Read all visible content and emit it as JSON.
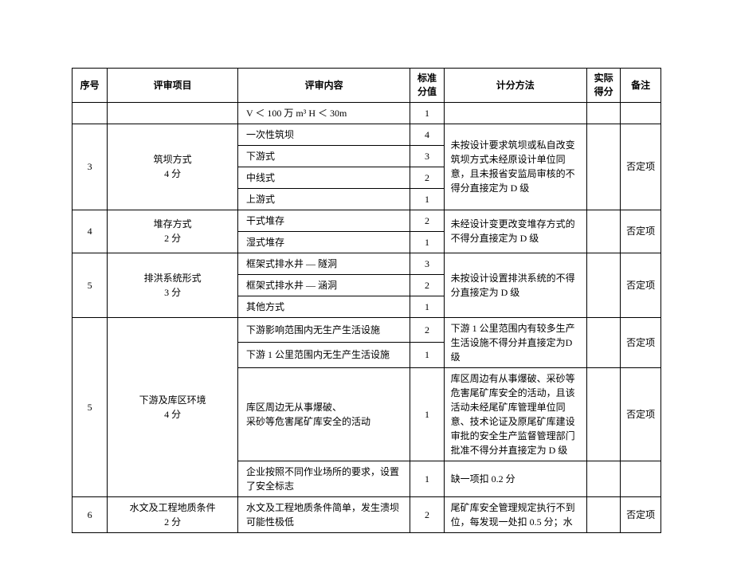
{
  "headers": {
    "seq": "序号",
    "item": "评审项目",
    "content": "评审内容",
    "score": "标准\n分值",
    "method": "计分方法",
    "actual": "实际\n得分",
    "note": "备注"
  },
  "rows": [
    {
      "seq": "",
      "item": "",
      "content": "V ＜ 100 万 m³   H ＜ 30m",
      "score": "1",
      "method": "",
      "note": ""
    },
    {
      "seq": "3",
      "item": "筑坝方式\n4 分",
      "sub": [
        {
          "content": "一次性筑坝",
          "score": "4"
        },
        {
          "content": "下游式",
          "score": "3"
        },
        {
          "content": "中线式",
          "score": "2"
        },
        {
          "content": "上游式",
          "score": "1"
        }
      ],
      "method": "未按设计要求筑坝或私自改变筑坝方式未经原设计单位同意，且未报省安监局审核的不得分直接定为 D 级",
      "note": "否定项"
    },
    {
      "seq": "4",
      "item": "堆存方式\n2 分",
      "sub": [
        {
          "content": "干式堆存",
          "score": "2"
        },
        {
          "content": "湿式堆存",
          "score": "1"
        }
      ],
      "method": "未经设计变更改变堆存方式的不得分直接定为  D 级",
      "note": "否定项"
    },
    {
      "seq": "5",
      "item": "排洪系统形式\n3 分",
      "sub": [
        {
          "content": "框架式排水井 — 隧洞",
          "score": "3"
        },
        {
          "content": "框架式排水井 — 涵洞",
          "score": "2"
        },
        {
          "content": "其他方式",
          "score": "1"
        }
      ],
      "method": "未按设计设置排洪系统的不得分直接定为 D  级",
      "note": "否定项"
    },
    {
      "seq": "5",
      "item": "下游及库区环境\n4 分",
      "groups": [
        {
          "sub": [
            {
              "content": "下游影响范围内无生产生活设施",
              "score": "2"
            },
            {
              "content": "下游 1 公里范围内无生产生活设施",
              "score": "1"
            }
          ],
          "method": "下游 1 公里范围内有较多生产生活设施不得分并直接定为D级",
          "note": "否定项"
        },
        {
          "sub": [
            {
              "content": "库区周边无从事爆破、\n采砂等危害尾矿库安全的活动",
              "score": "1"
            }
          ],
          "method": "库区周边有从事爆破、采砂等危害尾矿库安全的活动，且该活动未经尾矿库管理单位同意、技术论证及原尾矿库建设审批的安全生产监督管理部门批准不得分并直接定为  D 级",
          "note": "否定项"
        },
        {
          "sub": [
            {
              "content": "企业按照不同作业场所的要求，设置了安全标志",
              "score": "1"
            }
          ],
          "method": "缺一项扣 0.2 分",
          "note": ""
        }
      ]
    },
    {
      "seq": "6",
      "item": "水文及工程地质条件\n2 分",
      "sub": [
        {
          "content": "水文及工程地质条件简单，发生溃坝可能性极低",
          "score": "2"
        }
      ],
      "method": "尾矿库安全管理规定执行不到位，每发现一处扣 0.5  分；水",
      "note": "否定项"
    }
  ]
}
